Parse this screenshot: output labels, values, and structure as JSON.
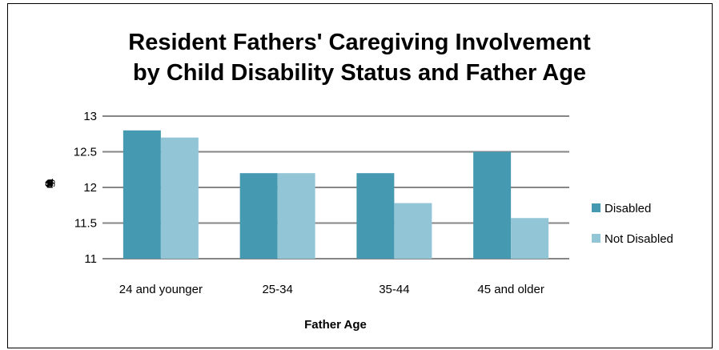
{
  "chart_data": {
    "type": "bar",
    "title_lines": [
      "Resident Fathers' Caregiving Involvement",
      "by Child Disability Status and Father Age"
    ],
    "xlabel": "Father Age",
    "ylabel": "Paternal Caregiving",
    "categories": [
      "24 and younger",
      "25-34",
      "35-44",
      "45 and older"
    ],
    "series": [
      {
        "name": "Disabled",
        "values": [
          12.8,
          12.2,
          12.2,
          12.5
        ],
        "color": "#4599B1"
      },
      {
        "name": "Not Disabled",
        "values": [
          12.7,
          12.2,
          11.78,
          11.57
        ],
        "color": "#92C5D6"
      }
    ],
    "ylim": [
      11,
      13
    ],
    "yticks": [
      "11",
      "11.5",
      "12",
      "12.5",
      "13"
    ],
    "grid": true,
    "legend_position": "right"
  }
}
